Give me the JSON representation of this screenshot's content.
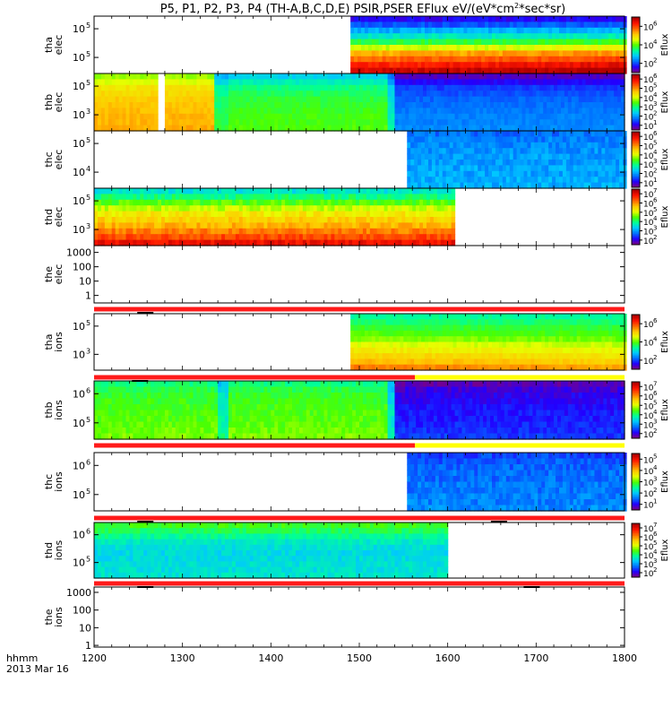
{
  "title": "P5, P1, P2, P3, P4 (TH-A,B,C,D,E) PSIR,PSER EFlux eV/(eV*cm2*sec*sr)",
  "title_sup": "2",
  "xaxis": {
    "stamp_line1": "hhmm",
    "stamp_line2": "2013 Mar 16",
    "xlim": [
      1200,
      1800
    ],
    "ticks": [
      "1200",
      "1300",
      "1400",
      "1500",
      "1600",
      "1700",
      "1800"
    ]
  },
  "colorbar_label": "Eflux",
  "colors": {
    "rainbow": [
      "#7f007f",
      "#2200ff",
      "#0070ff",
      "#00c8ff",
      "#00ff99",
      "#4cff00",
      "#e6ff00",
      "#ffc800",
      "#ff6a00",
      "#ff1500",
      "#b00000"
    ],
    "bar_red": "#ff1a1a",
    "bar_yellow": "#ffff00"
  },
  "chart_data": [
    {
      "id": "tha_elec",
      "type": "heatmap",
      "ylabel": [
        "tha",
        "elec"
      ],
      "ylim": [
        5,
        6
      ],
      "ytick_labels": [
        "10",
        "10"
      ],
      "ytick_exps": [
        "5",
        "5"
      ],
      "data_start": 1490,
      "data_end": 1800,
      "profile": [
        0.1,
        0.17,
        0.27,
        0.35,
        0.45,
        0.58,
        0.72,
        0.8,
        0.88,
        0.95
      ],
      "trend": 0.07,
      "noise": 0.03,
      "cbar_labels": [
        "10",
        "10",
        "10"
      ],
      "cbar_exps": [
        "6",
        "4",
        "2"
      ],
      "has_cbar": true
    },
    {
      "id": "thb_elec",
      "type": "heatmap",
      "ylabel": [
        "thb",
        "elec"
      ],
      "ylim": [
        2,
        6
      ],
      "ytick_labels": [
        "10",
        "10"
      ],
      "ytick_exps": [
        "5",
        "3"
      ],
      "data_start": 1200,
      "data_end": 1800,
      "profile": [
        0.5,
        0.55,
        0.6,
        0.62,
        0.64,
        0.65,
        0.66,
        0.67,
        0.67,
        0.68
      ],
      "trend": 0,
      "noise": 0.02,
      "gaps": [
        [
          1272,
          1280
        ]
      ],
      "segments": [
        {
          "t0": 1200,
          "t1": 1335,
          "offset": 0.05
        },
        {
          "t0": 1335,
          "t1": 1350,
          "offset": -0.22
        },
        {
          "t0": 1350,
          "t1": 1532,
          "offset": -0.18
        },
        {
          "t0": 1532,
          "t1": 1540,
          "offset": -0.3
        },
        {
          "t0": 1540,
          "t1": 1800,
          "offset": -0.45
        }
      ],
      "cbar_labels": [
        "10",
        "10",
        "10",
        "10",
        "10",
        "10"
      ],
      "cbar_exps": [
        "6",
        "5",
        "4",
        "3",
        "2",
        "1"
      ],
      "has_cbar": true
    },
    {
      "id": "thc_elec",
      "type": "heatmap",
      "ylabel": [
        "thc",
        "elec"
      ],
      "ylim": [
        3,
        6
      ],
      "ytick_labels": [
        "10",
        "10"
      ],
      "ytick_exps": [
        "5",
        "4"
      ],
      "data_start": 1554,
      "data_end": 1800,
      "profile": [
        0.2,
        0.22,
        0.23,
        0.24,
        0.25,
        0.25,
        0.26,
        0.26,
        0.27,
        0.27
      ],
      "trend": 0,
      "noise": 0.04,
      "cbar_labels": [
        "10",
        "10",
        "10",
        "10",
        "10",
        "10"
      ],
      "cbar_exps": [
        "6",
        "5",
        "4",
        "3",
        "2",
        "1"
      ],
      "has_cbar": true
    },
    {
      "id": "thd_elec",
      "type": "heatmap",
      "ylabel": [
        "thd",
        "elec"
      ],
      "ylim": [
        2,
        6
      ],
      "ytick_labels": [
        "10",
        "10"
      ],
      "ytick_exps": [
        "5",
        "3"
      ],
      "data_start": 1200,
      "data_end": 1605,
      "profile": [
        0.35,
        0.42,
        0.5,
        0.58,
        0.64,
        0.68,
        0.72,
        0.78,
        0.84,
        0.92
      ],
      "trend": 0,
      "noise": 0.04,
      "cbar_labels": [
        "10",
        "10",
        "10",
        "10",
        "10",
        "10"
      ],
      "cbar_exps": [
        "7",
        "6",
        "5",
        "4",
        "3",
        "2"
      ],
      "has_cbar": true
    },
    {
      "id": "the_elec",
      "type": "line",
      "ylabel": [
        "the",
        "elec"
      ],
      "ylim": [
        0.3,
        3000
      ],
      "ytick_labels": [
        "1000",
        "100",
        "10",
        "1"
      ],
      "ytick_vals": [
        1000,
        100,
        10,
        1
      ],
      "has_cbar": false,
      "empty": true
    },
    {
      "id": "tha_ions",
      "type": "heatmap",
      "ylabel": [
        "tha",
        "ions"
      ],
      "ylim": [
        2,
        6
      ],
      "ytick_labels": [
        "10",
        "10"
      ],
      "ytick_exps": [
        "5",
        "3"
      ],
      "data_start": 1490,
      "data_end": 1800,
      "profile": [
        0.4,
        0.43,
        0.47,
        0.5,
        0.54,
        0.6,
        0.64,
        0.68,
        0.72,
        0.78
      ],
      "trend": -0.05,
      "noise": 0.02,
      "cbar_labels": [
        "10",
        "10",
        "10"
      ],
      "cbar_exps": [
        "6",
        "4",
        "2"
      ],
      "has_cbar": true
    },
    {
      "id": "thb_ions",
      "type": "heatmap",
      "ylabel": [
        "thb",
        "ions"
      ],
      "ylim": [
        4,
        7
      ],
      "ytick_labels": [
        "10",
        "10"
      ],
      "ytick_exps": [
        "6",
        "5"
      ],
      "data_start": 1200,
      "data_end": 1800,
      "profile": [
        0.42,
        0.45,
        0.47,
        0.48,
        0.49,
        0.5,
        0.5,
        0.51,
        0.52,
        0.53
      ],
      "trend": 0,
      "noise": 0.03,
      "segments": [
        {
          "t0": 1200,
          "t1": 1338,
          "offset": 0
        },
        {
          "t0": 1338,
          "t1": 1352,
          "offset": -0.12
        },
        {
          "t0": 1352,
          "t1": 1532,
          "offset": 0
        },
        {
          "t0": 1532,
          "t1": 1540,
          "offset": -0.15
        },
        {
          "t0": 1540,
          "t1": 1800,
          "offset": -0.38
        }
      ],
      "cbar_labels": [
        "10",
        "10",
        "10",
        "10",
        "10",
        "10"
      ],
      "cbar_exps": [
        "7",
        "6",
        "5",
        "4",
        "3",
        "2"
      ],
      "has_cbar": true
    },
    {
      "id": "thc_ions",
      "type": "heatmap",
      "ylabel": [
        "thc",
        "ions"
      ],
      "ylim": [
        4,
        7
      ],
      "ytick_labels": [
        "10",
        "10"
      ],
      "ytick_exps": [
        "6",
        "5"
      ],
      "data_start": 1554,
      "data_end": 1800,
      "profile": [
        0.16,
        0.18,
        0.19,
        0.2,
        0.2,
        0.21,
        0.21,
        0.22,
        0.22,
        0.23
      ],
      "trend": 0,
      "noise": 0.04,
      "cbar_labels": [
        "10",
        "10",
        "10",
        "10",
        "10"
      ],
      "cbar_exps": [
        "5",
        "4",
        "3",
        "2",
        "1"
      ],
      "has_cbar": true
    },
    {
      "id": "thd_ions",
      "type": "heatmap",
      "ylabel": [
        "thd",
        "ions"
      ],
      "ylim": [
        4,
        7
      ],
      "ytick_labels": [
        "10",
        "10"
      ],
      "ytick_exps": [
        "6",
        "5"
      ],
      "data_start": 1200,
      "data_end": 1600,
      "profile": [
        0.48,
        0.44,
        0.4,
        0.36,
        0.34,
        0.33,
        0.33,
        0.34,
        0.34,
        0.35
      ],
      "trend": 0,
      "noise": 0.03,
      "cbar_labels": [
        "10",
        "10",
        "10",
        "10",
        "10",
        "10"
      ],
      "cbar_exps": [
        "7",
        "6",
        "5",
        "4",
        "3",
        "2"
      ],
      "has_cbar": true
    },
    {
      "id": "the_ions",
      "type": "line",
      "ylabel": [
        "the",
        "ions"
      ],
      "ylim": [
        0.8,
        2000
      ],
      "ytick_labels": [
        "1000",
        "100",
        "10",
        "1"
      ],
      "ytick_vals": [
        1000,
        100,
        10,
        1
      ],
      "has_cbar": false,
      "empty": true
    }
  ],
  "bars": [
    {
      "id": "bar-1",
      "segments": [
        {
          "t0": 1200,
          "t1": 1800,
          "color": "red"
        }
      ],
      "marks": [
        1258
      ]
    },
    {
      "id": "bar-2",
      "segments": [
        {
          "t0": 1200,
          "t1": 1563,
          "color": "red"
        },
        {
          "t0": 1563,
          "t1": 1800,
          "color": "yellow"
        }
      ],
      "marks": [
        1252
      ]
    },
    {
      "id": "bar-3",
      "segments": [
        {
          "t0": 1200,
          "t1": 1563,
          "color": "red"
        },
        {
          "t0": 1563,
          "t1": 1800,
          "color": "yellow"
        }
      ],
      "marks": []
    },
    {
      "id": "bar-4",
      "segments": [
        {
          "t0": 1200,
          "t1": 1800,
          "color": "red"
        }
      ],
      "marks": [
        1258,
        1658
      ]
    },
    {
      "id": "bar-5",
      "segments": [
        {
          "t0": 1200,
          "t1": 1800,
          "color": "red"
        }
      ],
      "marks": [
        1258,
        1695
      ]
    }
  ]
}
